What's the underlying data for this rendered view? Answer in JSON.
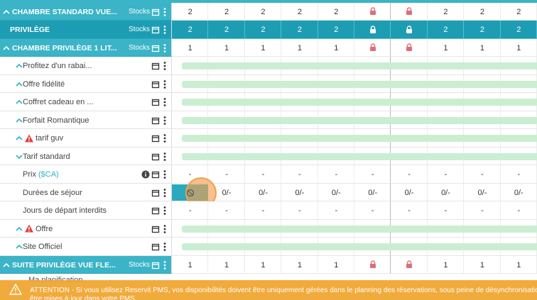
{
  "rows": [
    {
      "kind": "room",
      "label": "CHAMBRE STANDARD VUE...",
      "stocks": "Stocks",
      "cells": [
        "2",
        "2",
        "2",
        "2",
        "2",
        null,
        null,
        "2",
        "2",
        "2"
      ]
    },
    {
      "kind": "group",
      "label": "PRIVILÈGE",
      "stocks": "Stocks",
      "cells": [
        "2",
        "2",
        "2",
        "2",
        "2",
        null,
        null,
        "2",
        "2",
        "2"
      ]
    },
    {
      "kind": "room",
      "label": "CHAMBRE PRIVILÈGE 1 LIT...",
      "stocks": "Stocks",
      "cells": [
        "1",
        "1",
        "1",
        "1",
        "1",
        null,
        null,
        "1",
        "1",
        "1"
      ]
    },
    {
      "kind": "rate",
      "label": "Profitez d'un rabai..."
    },
    {
      "kind": "rate",
      "label": "Offre fidélité"
    },
    {
      "kind": "rate",
      "label": "Coffret cadeau en ..."
    },
    {
      "kind": "rate",
      "label": "Forfait Romantique"
    },
    {
      "kind": "rate",
      "label": "tarif guv",
      "warning": true
    },
    {
      "kind": "rate",
      "label": "Tarif standard",
      "open": true
    },
    {
      "kind": "restriction",
      "label": "Prix",
      "unit": "($CA)",
      "info": true,
      "cells": [
        "-",
        "-",
        "-",
        "-",
        "-",
        "-",
        "-",
        "-",
        "-",
        "-"
      ]
    },
    {
      "kind": "restriction",
      "label": "Durées de séjour",
      "cells": [
        null,
        "0/-",
        "0/-",
        "0/-",
        "0/-",
        "0/-",
        "0/-",
        "0/-",
        "0/-",
        "0/-"
      ]
    },
    {
      "kind": "restriction",
      "label": "Jours de départ interdits",
      "cells": [
        "-",
        "-",
        "-",
        "-",
        "-",
        "-",
        "-",
        "-",
        "-",
        "-"
      ]
    },
    {
      "kind": "rate",
      "label": "Offre",
      "warning": true
    },
    {
      "kind": "rate",
      "label": "Site Officiel"
    },
    {
      "kind": "room",
      "label": "SUITE PRIVILÈGE VUE FLE...",
      "stocks": "Stocks",
      "cells": [
        "1",
        "1",
        "1",
        "1",
        "1",
        null,
        null,
        "1",
        "1",
        "1"
      ]
    }
  ],
  "banner": {
    "behind": "Ma planification",
    "text": "ATTENTION - Si vous utilisez Reservit PMS, vos disponibilités doivent être uniquement gérées dans le planning des réservations, sous peine de désynchronisation. Si vous",
    "text2": "être mises à jour dans votre PMS."
  }
}
